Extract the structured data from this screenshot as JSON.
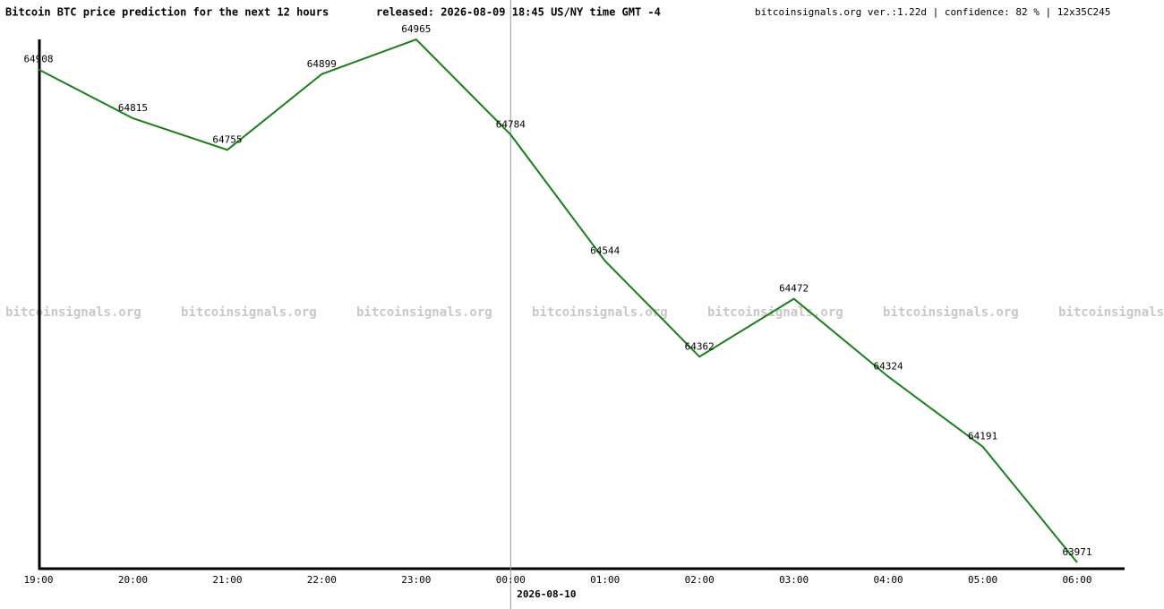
{
  "chart_data": {
    "type": "line",
    "title": "Bitcoin BTC price prediction for the next 12 hours",
    "subtitle": "released: 2026-08-09 18:45 US/NY time GMT -4",
    "info": "bitcoinsignals.org ver.:1.22d | confidence: 82 % | 12x35C245",
    "watermark": "bitcoinsignals.org",
    "date_marker": {
      "label": "2026-08-10",
      "at": "00:00"
    },
    "categories": [
      "19:00",
      "20:00",
      "21:00",
      "22:00",
      "23:00",
      "00:00",
      "01:00",
      "02:00",
      "03:00",
      "04:00",
      "05:00",
      "06:00"
    ],
    "series": [
      {
        "color": "#1a7f1a",
        "values": [
          64908,
          64815,
          64755,
          64899,
          64965,
          64784,
          64544,
          64362,
          64472,
          64324,
          64191,
          63971
        ]
      }
    ]
  }
}
